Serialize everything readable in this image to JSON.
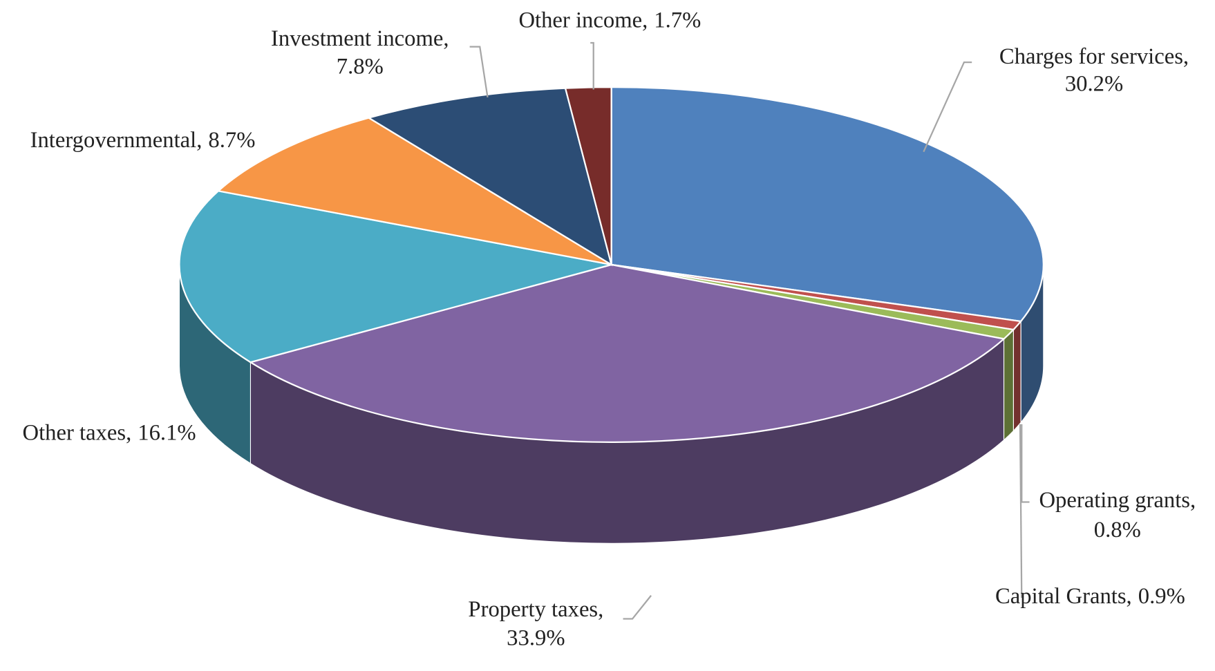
{
  "chart_data": {
    "type": "pie3d",
    "categories": [
      "Charges for services,",
      "Operating grants,",
      "Capital Grants,",
      "Property taxes,",
      "Other taxes,",
      "Intergovernmental,",
      "Investment income,",
      "Other income,"
    ],
    "values": [
      30.2,
      0.8,
      0.9,
      33.9,
      16.1,
      8.7,
      7.8,
      1.7
    ],
    "value_labels": [
      "30.2%",
      "0.8%",
      "0.9%",
      "33.9%",
      "16.1%",
      "8.7%",
      "7.8%",
      "1.7%"
    ],
    "colors": [
      "#4f81bd",
      "#c0504d",
      "#9bbb59",
      "#8064a2",
      "#4bacc6",
      "#f79646",
      "#2c4d75",
      "#772c2a"
    ]
  }
}
